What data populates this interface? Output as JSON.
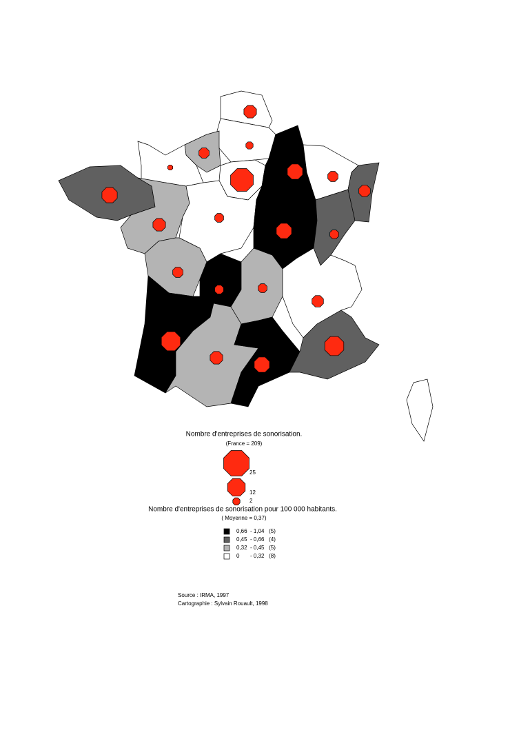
{
  "map": {
    "regions": [
      {
        "count": 6,
        "class": 3
      },
      {
        "count": 2,
        "class": 3
      },
      {
        "count": 4,
        "class": 2
      },
      {
        "count": 1,
        "class": 3
      },
      {
        "count": 20,
        "class": 3
      },
      {
        "count": 9,
        "class": 0
      },
      {
        "count": 4,
        "class": 3
      },
      {
        "count": 5,
        "class": 1
      },
      {
        "count": 9,
        "class": 1
      },
      {
        "count": 6,
        "class": 2
      },
      {
        "count": 3,
        "class": 3
      },
      {
        "count": 9,
        "class": 0
      },
      {
        "count": 3,
        "class": 1
      },
      {
        "count": 4,
        "class": 2
      },
      {
        "count": 3,
        "class": 0
      },
      {
        "count": 3,
        "class": 2
      },
      {
        "count": 5,
        "class": 3
      },
      {
        "count": 14,
        "class": 0
      },
      {
        "count": 6,
        "class": 2
      },
      {
        "count": 9,
        "class": 0
      },
      {
        "count": 14,
        "class": 1
      },
      {
        "class": 3
      }
    ],
    "circle_legend": {
      "title": "Nombre d'entreprises de sonorisation.",
      "subtitle": "(France = 209)",
      "sizes": [
        25,
        12,
        2
      ],
      "color": "#ff2a10"
    },
    "class_legend": {
      "title": "Nombre d'entreprises de sonorisation pour 100 000 habitants.",
      "subtitle": "( Moyenne = 0,37)",
      "classes": [
        {
          "label": "0,66  - 1,04   (5)",
          "color": "#000000"
        },
        {
          "label": "0,45  - 0,66   (4)",
          "color": "#606060"
        },
        {
          "label": "0,32  - 0,45   (5)",
          "color": "#b4b4b4"
        },
        {
          "label": "0       - 0,32   (8)",
          "color": "#ffffff"
        }
      ]
    },
    "source": [
      "Source : IRMA, 1997",
      "Cartographie : Sylvain Rouault, 1998"
    ]
  }
}
